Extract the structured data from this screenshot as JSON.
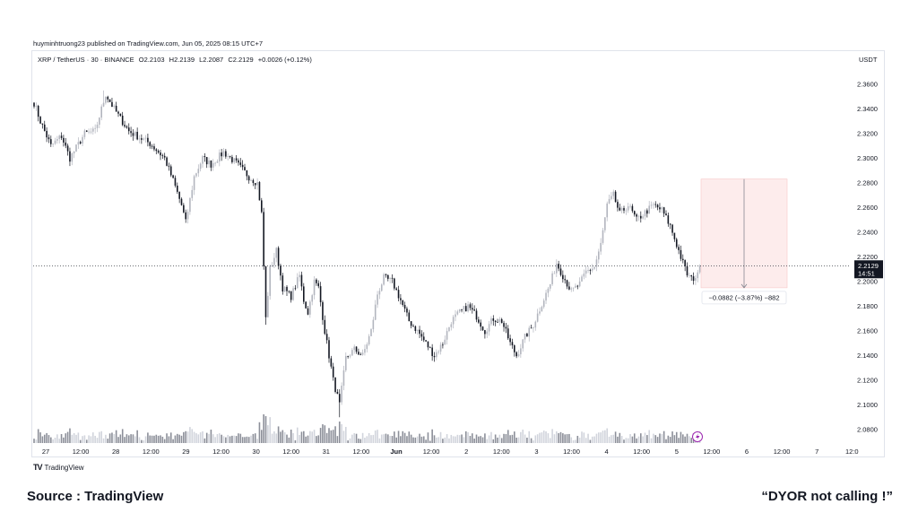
{
  "header": {
    "published": "huyminhtruong23 published on TradingView.com, Jun 05, 2025 08:15 UTC+7",
    "symbol": "XRP / TetherUS · 30 · BINANCE",
    "open": "O2.2103",
    "high": "H2.2139",
    "low": "L2.2087",
    "close": "C2.2129",
    "change": "+0.0026 (+0.12%)",
    "currency": "USDT"
  },
  "footer": {
    "brand": "TradingView",
    "source": "Source : TradingView",
    "caption": "“DYOR  not calling !”"
  },
  "price_label": {
    "price": "2.2129",
    "countdown": "14:51"
  },
  "measure_label": "−0.0882 (−3.87%) −882",
  "colors": {
    "up": "#b2b5be",
    "down": "#131722",
    "measure_fill": "#fdecec",
    "label_bg": "#131722",
    "grid_text": "#131722"
  },
  "chart_data": {
    "type": "candlestick",
    "ylim": [
      2.07,
      2.37
    ],
    "y_ticks": [
      "2.3600",
      "2.3400",
      "2.3200",
      "2.3000",
      "2.2800",
      "2.2600",
      "2.2400",
      "2.2200",
      "2.2000",
      "2.1800",
      "2.1600",
      "2.1400",
      "2.1200",
      "2.1000",
      "2.0800"
    ],
    "x_ticks": [
      "27",
      "12:00",
      "28",
      "12:00",
      "29",
      "12:00",
      "30",
      "12:00",
      "31",
      "12:00",
      "Jun",
      "12:00",
      "2",
      "12:00",
      "3",
      "12:00",
      "4",
      "12:00",
      "5",
      "12:00",
      "6",
      "12:00",
      "7",
      "12:0"
    ],
    "bold_ticks": [
      "Jun"
    ],
    "keypoints": [
      [
        0,
        2.345
      ],
      [
        3,
        2.33
      ],
      [
        8,
        2.31
      ],
      [
        13,
        2.318
      ],
      [
        17,
        2.3
      ],
      [
        24,
        2.32
      ],
      [
        29,
        2.322
      ],
      [
        34,
        2.352
      ],
      [
        38,
        2.34
      ],
      [
        45,
        2.322
      ],
      [
        55,
        2.312
      ],
      [
        62,
        2.3
      ],
      [
        66,
        2.282
      ],
      [
        70,
        2.262
      ],
      [
        72,
        2.248
      ],
      [
        76,
        2.285
      ],
      [
        80,
        2.3
      ],
      [
        84,
        2.295
      ],
      [
        90,
        2.305
      ],
      [
        96,
        2.296
      ],
      [
        102,
        2.285
      ],
      [
        106,
        2.28
      ],
      [
        108,
        2.255
      ],
      [
        110,
        2.17
      ],
      [
        112,
        2.21
      ],
      [
        115,
        2.225
      ],
      [
        118,
        2.195
      ],
      [
        122,
        2.188
      ],
      [
        126,
        2.205
      ],
      [
        128,
        2.185
      ],
      [
        130,
        2.175
      ],
      [
        133,
        2.2
      ],
      [
        135,
        2.195
      ],
      [
        138,
        2.16
      ],
      [
        142,
        2.12
      ],
      [
        145,
        2.1
      ],
      [
        148,
        2.138
      ],
      [
        152,
        2.145
      ],
      [
        156,
        2.14
      ],
      [
        160,
        2.16
      ],
      [
        163,
        2.19
      ],
      [
        166,
        2.203
      ],
      [
        170,
        2.2
      ],
      [
        174,
        2.185
      ],
      [
        178,
        2.168
      ],
      [
        182,
        2.16
      ],
      [
        186,
        2.15
      ],
      [
        190,
        2.14
      ],
      [
        194,
        2.15
      ],
      [
        198,
        2.168
      ],
      [
        202,
        2.175
      ],
      [
        206,
        2.18
      ],
      [
        210,
        2.172
      ],
      [
        214,
        2.16
      ],
      [
        218,
        2.17
      ],
      [
        222,
        2.168
      ],
      [
        226,
        2.15
      ],
      [
        229,
        2.14
      ],
      [
        233,
        2.155
      ],
      [
        237,
        2.165
      ],
      [
        241,
        2.182
      ],
      [
        245,
        2.198
      ],
      [
        248,
        2.215
      ],
      [
        251,
        2.205
      ],
      [
        255,
        2.192
      ],
      [
        259,
        2.198
      ],
      [
        262,
        2.208
      ],
      [
        266,
        2.212
      ],
      [
        269,
        2.23
      ],
      [
        272,
        2.262
      ],
      [
        275,
        2.27
      ],
      [
        278,
        2.255
      ],
      [
        282,
        2.262
      ],
      [
        286,
        2.25
      ],
      [
        290,
        2.256
      ],
      [
        294,
        2.262
      ],
      [
        298,
        2.258
      ],
      [
        302,
        2.245
      ],
      [
        305,
        2.23
      ],
      [
        308,
        2.215
      ],
      [
        310,
        2.206
      ],
      [
        312,
        2.202
      ],
      [
        315,
        2.205
      ],
      [
        316,
        2.213
      ]
    ],
    "extremes": {
      "high": {
        "i": 33,
        "v": 2.355
      },
      "low": {
        "i": 145,
        "v": 2.09
      },
      "spike_low": {
        "i": 110,
        "v": 2.165
      }
    },
    "last_price": 2.2129,
    "measure": {
      "top": 2.2832,
      "bottom": 2.195
    }
  }
}
